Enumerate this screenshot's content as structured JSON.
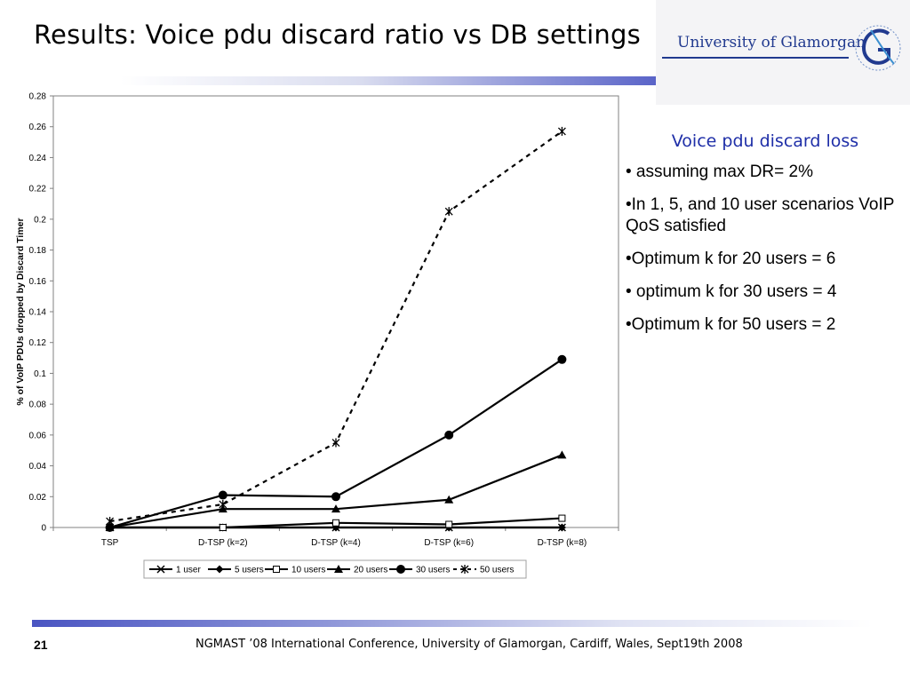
{
  "slide": {
    "title": "Results: Voice pdu discard ratio vs DB settings",
    "page_number": "21",
    "footer": "NGMAST ’08 International Conference, University of Glamorgan, Cardiff,  Wales, Sept19th  2008"
  },
  "logo": {
    "text": "University of Glamorgan",
    "emblem_icon": "glamorgan-g-emblem",
    "color": "#213a8f"
  },
  "notes": {
    "heading": "Voice pdu discard loss",
    "items": [
      "• assuming max DR= 2%",
      "•In 1, 5, and 10 user scenarios VoIP QoS satisfied",
      "•Optimum k for 20 users = 6",
      "• optimum k for 30 users = 4",
      "•Optimum k for 50 users = 2"
    ],
    "heading_color": "#1f2fa8"
  },
  "chart_data": {
    "type": "line",
    "title": "",
    "xlabel": "",
    "ylabel": "% of VoIP PDUs dropped by Discard Timer",
    "categories": [
      "TSP",
      "D-TSP (k=2)",
      "D-TSP (k=4)",
      "D-TSP (k=6)",
      "D-TSP (k=8)"
    ],
    "ylim": [
      0,
      0.28
    ],
    "yticks": [
      "0",
      "0.02",
      "0.04",
      "0.06",
      "0.08",
      "0.1",
      "0.12",
      "0.14",
      "0.16",
      "0.18",
      "0.2",
      "0.22",
      "0.24",
      "0.26",
      "0.28"
    ],
    "grid": false,
    "legend_position": "bottom",
    "series": [
      {
        "name": "1 user",
        "marker": "x",
        "dashed": false,
        "values": [
          0,
          0,
          0,
          0,
          0
        ]
      },
      {
        "name": "5 users",
        "marker": "diamond",
        "dashed": false,
        "values": [
          0,
          0,
          0,
          0,
          0
        ]
      },
      {
        "name": "10 users",
        "marker": "square",
        "dashed": false,
        "values": [
          0,
          0,
          0.003,
          0.002,
          0.006
        ]
      },
      {
        "name": "20 users",
        "marker": "triangle",
        "dashed": false,
        "values": [
          0,
          0.012,
          0.012,
          0.018,
          0.047
        ]
      },
      {
        "name": "30 users",
        "marker": "circle",
        "dashed": false,
        "values": [
          0,
          0.021,
          0.02,
          0.06,
          0.109
        ]
      },
      {
        "name": "50 users",
        "marker": "star",
        "dashed": true,
        "values": [
          0.004,
          0.015,
          0.055,
          0.205,
          0.257
        ]
      }
    ]
  }
}
